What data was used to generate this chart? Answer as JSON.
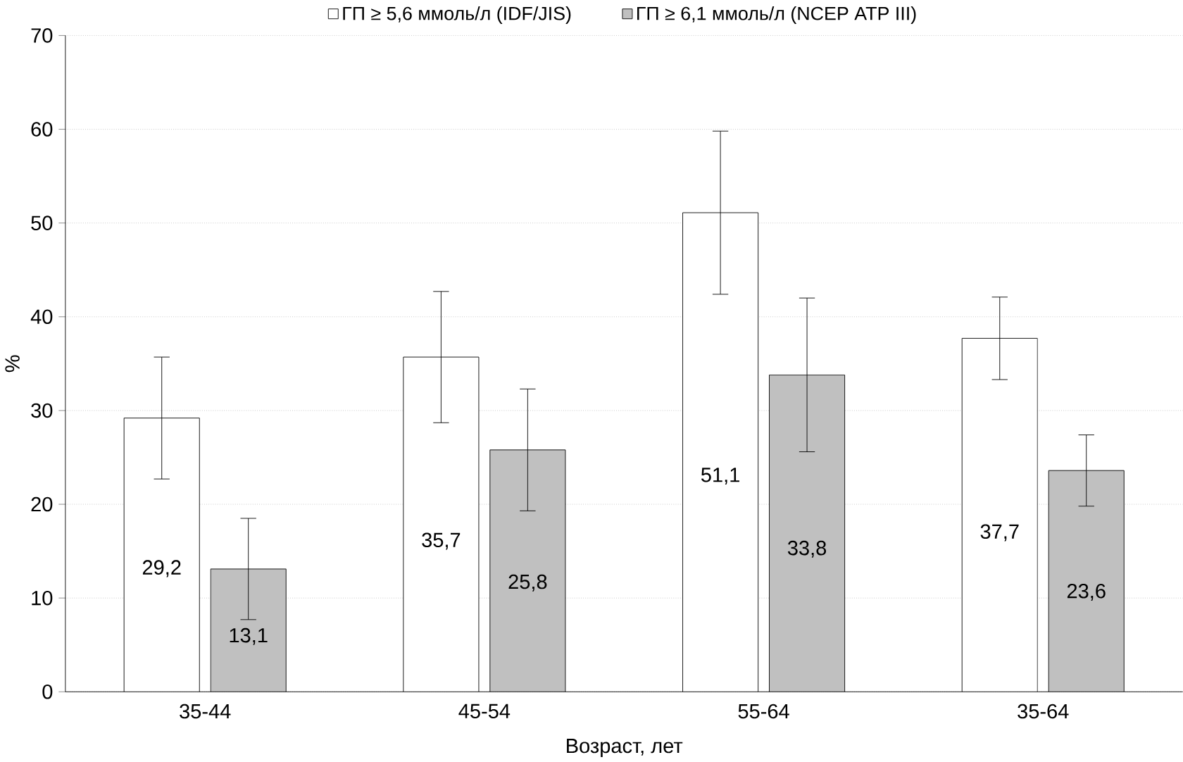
{
  "chart_data": {
    "type": "bar",
    "xlabel": "Возраст, лет",
    "ylabel": "%",
    "categories": [
      "35-44",
      "45-54",
      "55-64",
      "35-64"
    ],
    "series": [
      {
        "name": "ГП ≥ 5,6 ммоль/л (IDF/JIS)",
        "color": "#ffffff",
        "values": [
          29.2,
          35.7,
          51.1,
          37.7
        ],
        "errors": [
          6.5,
          7.0,
          8.7,
          4.4
        ],
        "value_labels": [
          "29,2",
          "35,7",
          "51,1",
          "37,7"
        ]
      },
      {
        "name": "ГП ≥ 6,1 ммоль/л (NCEP ATP III)",
        "color": "#c0c0c0",
        "values": [
          13.1,
          25.8,
          33.8,
          23.6
        ],
        "errors": [
          5.4,
          6.5,
          8.2,
          3.8
        ],
        "value_labels": [
          "13,1",
          "25,8",
          "33,8",
          "23,6"
        ]
      }
    ],
    "ylim": [
      0,
      70
    ],
    "yticks": [
      0,
      10,
      20,
      30,
      40,
      50,
      60,
      70
    ],
    "grid": "y",
    "legend": "top"
  }
}
